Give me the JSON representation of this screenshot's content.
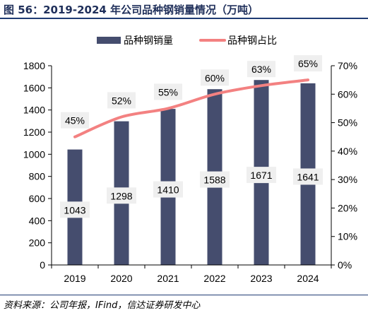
{
  "figure": {
    "title": "图 56：2019-2024 年公司品种钢销量情况（万吨）",
    "source": "资料来源：公司年报，IFind，信达证券研发中心"
  },
  "colors": {
    "bar": "#454d6e",
    "line": "#f38181",
    "label_bg": "#efefef",
    "axis": "#000000",
    "title": "#1f2f5a",
    "rule": "#1f3b73"
  },
  "chart_data": {
    "type": "bar",
    "categories": [
      "2019",
      "2020",
      "2021",
      "2022",
      "2023",
      "2024"
    ],
    "series": [
      {
        "name": "品种钢销量",
        "type": "bar",
        "axis": "left",
        "values": [
          1043,
          1298,
          1410,
          1588,
          1671,
          1641
        ],
        "labels": [
          "1043",
          "1298",
          "1410",
          "1588",
          "1671",
          "1641"
        ]
      },
      {
        "name": "品种钢占比",
        "type": "line",
        "axis": "right",
        "values": [
          45,
          52,
          55,
          60,
          63,
          65
        ],
        "labels": [
          "45%",
          "52%",
          "55%",
          "60%",
          "63%",
          "65%"
        ]
      }
    ],
    "y_left": {
      "min": 0,
      "max": 1800,
      "ticks": [
        "0",
        "200",
        "400",
        "600",
        "800",
        "1000",
        "1200",
        "1400",
        "1600",
        "1800"
      ]
    },
    "y_right": {
      "min": 0,
      "max": 70,
      "unit": "%",
      "ticks": [
        "0%",
        "10%",
        "20%",
        "30%",
        "40%",
        "50%",
        "60%",
        "70%"
      ]
    },
    "legend": [
      "品种钢销量",
      "品种钢占比"
    ],
    "legend_position": "top-center",
    "grid": false
  }
}
